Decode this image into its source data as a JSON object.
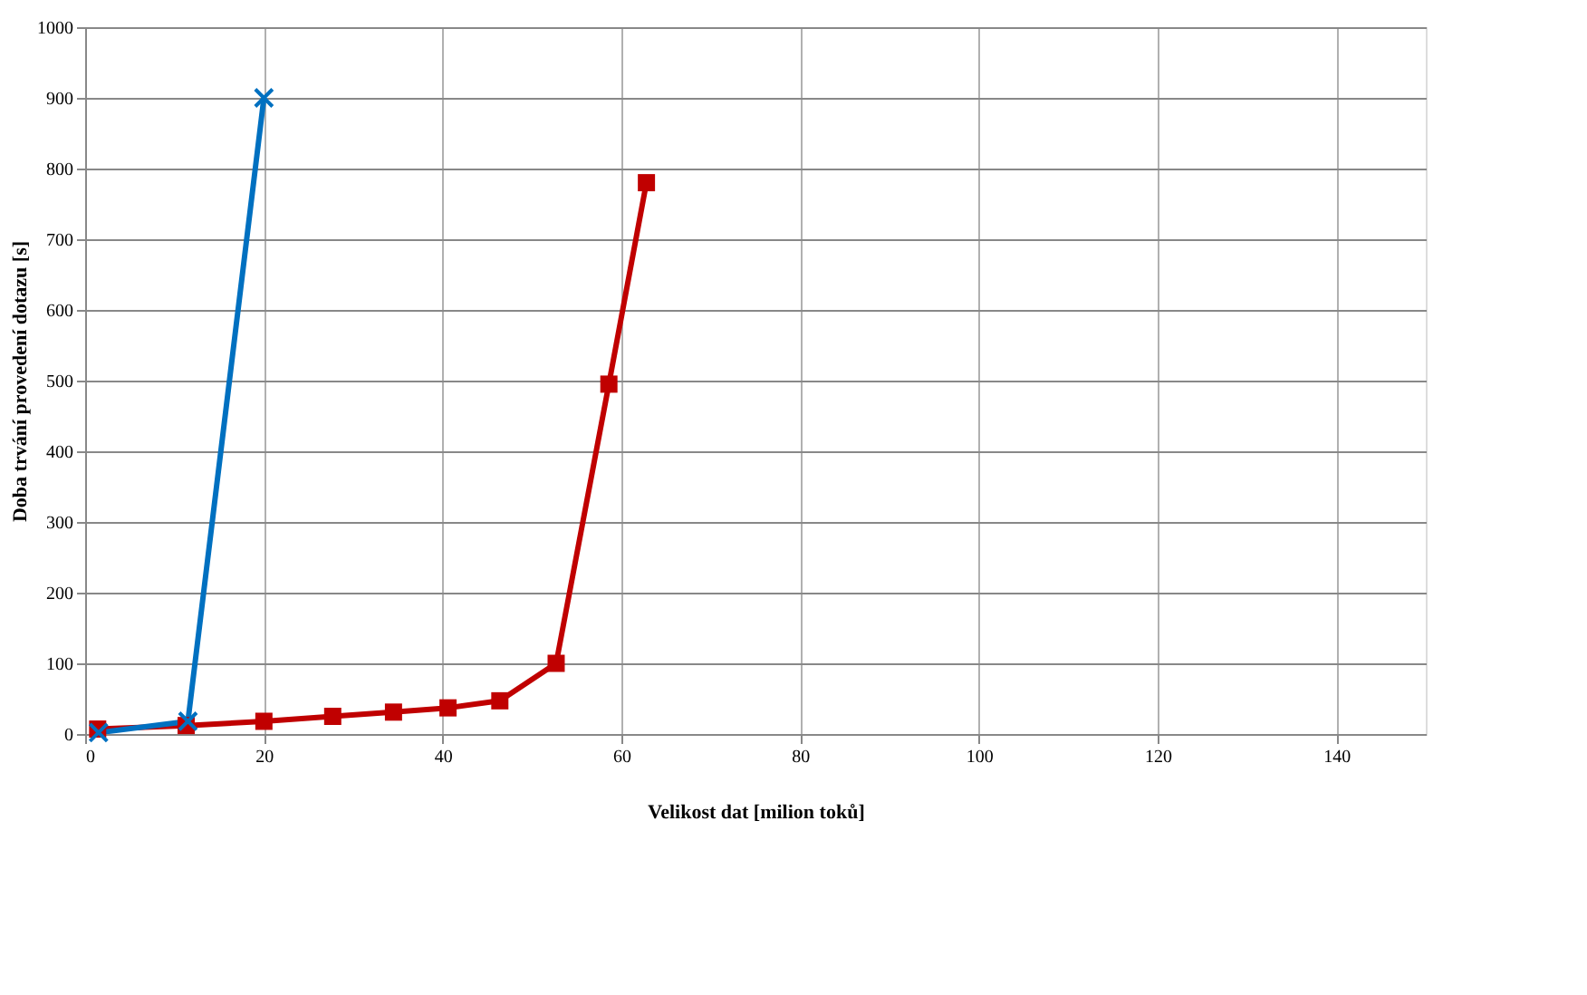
{
  "chart_data": {
    "type": "line",
    "xlabel": "Velikost dat [milion toků]",
    "ylabel": "Doba trvání provedení dotazu [s]",
    "xlim": [
      0,
      150
    ],
    "xticks": [
      0,
      20,
      40,
      60,
      80,
      100,
      120,
      140
    ],
    "ylim": [
      0,
      1000
    ],
    "yticks": [
      0,
      100,
      200,
      300,
      400,
      500,
      600,
      700,
      800,
      900,
      1000
    ],
    "grid": true,
    "series": [
      {
        "color": "#0070c0",
        "marker": "cross",
        "x": [
          1.5,
          11.5,
          20
        ],
        "values": [
          2,
          18,
          900
        ]
      },
      {
        "color": "#c00000",
        "marker": "square",
        "x": [
          1.4,
          11.3,
          20,
          27.7,
          34.5,
          40.6,
          46.4,
          52.7,
          58.6,
          62.8
        ],
        "values": [
          7,
          12,
          18,
          25,
          31,
          37,
          47,
          100,
          495,
          780
        ]
      }
    ]
  }
}
